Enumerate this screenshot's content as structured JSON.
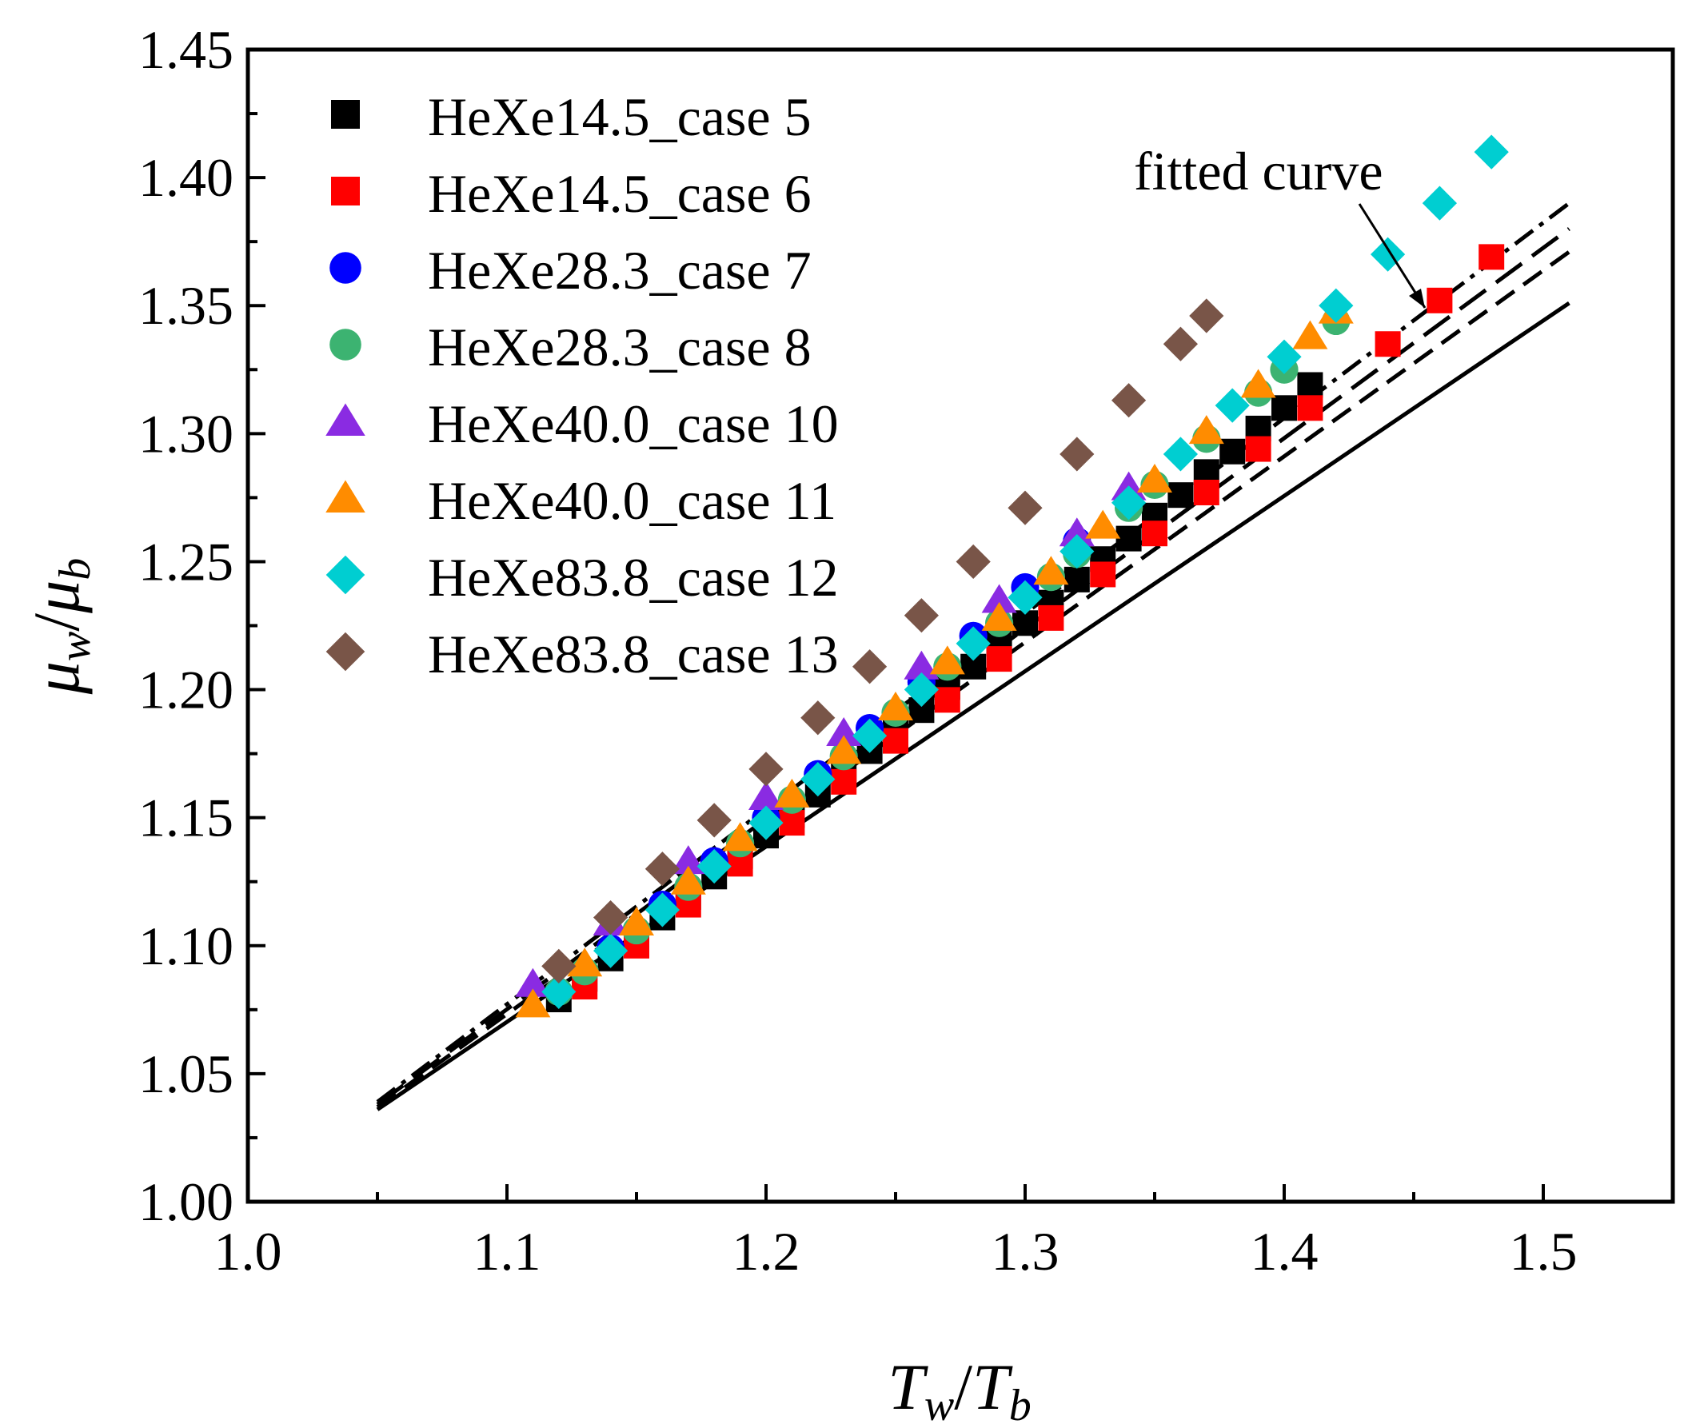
{
  "chart_data": {
    "type": "scatter",
    "xlabel_main": "T",
    "xlabel_sub1": "w",
    "xlabel_sep": "/",
    "xlabel_main2": "T",
    "xlabel_sub2": "b",
    "ylabel_main": "μ",
    "ylabel_sub1": "w",
    "ylabel_sep": "/",
    "ylabel_main2": "μ",
    "ylabel_sub2": "b",
    "xlim": [
      1.0,
      1.55
    ],
    "ylim": [
      1.0,
      1.45
    ],
    "xticks": [
      {
        "v": 1.0,
        "label": "1.0"
      },
      {
        "v": 1.1,
        "label": "1.1"
      },
      {
        "v": 1.2,
        "label": "1.2"
      },
      {
        "v": 1.3,
        "label": "1.3"
      },
      {
        "v": 1.4,
        "label": "1.4"
      },
      {
        "v": 1.5,
        "label": "1.5"
      }
    ],
    "yticks": [
      {
        "v": 1.0,
        "label": "1.00"
      },
      {
        "v": 1.05,
        "label": "1.05"
      },
      {
        "v": 1.1,
        "label": "1.10"
      },
      {
        "v": 1.15,
        "label": "1.15"
      },
      {
        "v": 1.2,
        "label": "1.20"
      },
      {
        "v": 1.25,
        "label": "1.25"
      },
      {
        "v": 1.3,
        "label": "1.30"
      },
      {
        "v": 1.35,
        "label": "1.35"
      },
      {
        "v": 1.4,
        "label": "1.40"
      },
      {
        "v": 1.45,
        "label": "1.45"
      }
    ],
    "annotation": {
      "text": "fitted curve",
      "arrow_to": [
        1.455,
        1.352
      ]
    },
    "series": [
      {
        "name": "HeXe14.5_case 5",
        "marker": "square",
        "color": "#000000",
        "x": [
          1.12,
          1.13,
          1.14,
          1.15,
          1.16,
          1.17,
          1.18,
          1.19,
          1.2,
          1.21,
          1.22,
          1.23,
          1.24,
          1.25,
          1.26,
          1.27,
          1.28,
          1.29,
          1.3,
          1.31,
          1.32,
          1.33,
          1.34,
          1.35,
          1.36,
          1.37,
          1.38,
          1.39,
          1.4,
          1.41
        ],
        "y": [
          1.079,
          1.087,
          1.095,
          1.103,
          1.111,
          1.119,
          1.127,
          1.135,
          1.143,
          1.151,
          1.159,
          1.168,
          1.176,
          1.184,
          1.192,
          1.201,
          1.209,
          1.218,
          1.226,
          1.234,
          1.243,
          1.251,
          1.259,
          1.268,
          1.276,
          1.285,
          1.293,
          1.302,
          1.31,
          1.319
        ]
      },
      {
        "name": "HeXe14.5_case 6",
        "marker": "square",
        "color": "#ff0000",
        "x": [
          1.13,
          1.15,
          1.17,
          1.19,
          1.21,
          1.23,
          1.25,
          1.27,
          1.29,
          1.31,
          1.33,
          1.35,
          1.37,
          1.39,
          1.41,
          1.44,
          1.46,
          1.48
        ],
        "y": [
          1.084,
          1.1,
          1.116,
          1.132,
          1.148,
          1.164,
          1.18,
          1.196,
          1.212,
          1.228,
          1.245,
          1.261,
          1.277,
          1.294,
          1.31,
          1.335,
          1.352,
          1.369
        ]
      },
      {
        "name": "HeXe28.3_case 7",
        "marker": "circle",
        "color": "#0000ff",
        "x": [
          1.14,
          1.16,
          1.18,
          1.2,
          1.22,
          1.24,
          1.26,
          1.28,
          1.3,
          1.32
        ],
        "y": [
          1.099,
          1.116,
          1.133,
          1.15,
          1.167,
          1.185,
          1.203,
          1.221,
          1.24,
          1.258
        ]
      },
      {
        "name": "HeXe28.3_case 8",
        "marker": "circle",
        "color": "#3cb371",
        "x": [
          1.12,
          1.13,
          1.15,
          1.17,
          1.19,
          1.21,
          1.23,
          1.25,
          1.27,
          1.29,
          1.31,
          1.32,
          1.34,
          1.35,
          1.37,
          1.39,
          1.4,
          1.42
        ],
        "y": [
          1.082,
          1.09,
          1.106,
          1.123,
          1.14,
          1.157,
          1.174,
          1.191,
          1.209,
          1.226,
          1.244,
          1.253,
          1.271,
          1.28,
          1.298,
          1.316,
          1.325,
          1.344
        ]
      },
      {
        "name": "HeXe40.0_case 10",
        "marker": "triangle",
        "color": "#8a2be2",
        "x": [
          1.11,
          1.14,
          1.17,
          1.2,
          1.23,
          1.26,
          1.29,
          1.32,
          1.34
        ],
        "y": [
          1.085,
          1.109,
          1.133,
          1.158,
          1.183,
          1.209,
          1.235,
          1.261,
          1.279
        ]
      },
      {
        "name": "HeXe40.0_case 11",
        "marker": "triangle",
        "color": "#ff8c00",
        "x": [
          1.11,
          1.13,
          1.15,
          1.17,
          1.19,
          1.21,
          1.23,
          1.25,
          1.27,
          1.29,
          1.31,
          1.33,
          1.35,
          1.37,
          1.39,
          1.41,
          1.42
        ],
        "y": [
          1.077,
          1.093,
          1.109,
          1.125,
          1.142,
          1.159,
          1.176,
          1.193,
          1.211,
          1.228,
          1.246,
          1.264,
          1.282,
          1.301,
          1.319,
          1.338,
          1.348
        ]
      },
      {
        "name": "HeXe83.8_case 12",
        "marker": "diamond",
        "color": "#00ced1",
        "x": [
          1.12,
          1.14,
          1.16,
          1.18,
          1.2,
          1.22,
          1.24,
          1.26,
          1.28,
          1.3,
          1.32,
          1.34,
          1.36,
          1.38,
          1.4,
          1.42,
          1.44,
          1.46,
          1.48
        ],
        "y": [
          1.082,
          1.098,
          1.114,
          1.131,
          1.148,
          1.165,
          1.182,
          1.2,
          1.218,
          1.236,
          1.254,
          1.273,
          1.292,
          1.311,
          1.33,
          1.35,
          1.37,
          1.39,
          1.41
        ]
      },
      {
        "name": "HeXe83.8_case 13",
        "marker": "diamond",
        "color": "#795548",
        "x": [
          1.12,
          1.14,
          1.16,
          1.18,
          1.2,
          1.22,
          1.24,
          1.26,
          1.28,
          1.3,
          1.32,
          1.34,
          1.36,
          1.37
        ],
        "y": [
          1.092,
          1.111,
          1.13,
          1.149,
          1.169,
          1.189,
          1.209,
          1.229,
          1.25,
          1.271,
          1.292,
          1.313,
          1.335,
          1.346
        ]
      }
    ],
    "fit_lines": [
      {
        "name": "fit-solid",
        "style": "solid",
        "x": [
          1.05,
          1.51
        ],
        "y": [
          1.036,
          1.351
        ]
      },
      {
        "name": "fit-dash",
        "style": "dash",
        "x": [
          1.05,
          1.51
        ],
        "y": [
          1.037,
          1.371
        ]
      },
      {
        "name": "fit-dash-long",
        "style": "dashlong",
        "x": [
          1.05,
          1.51
        ],
        "y": [
          1.038,
          1.38
        ]
      },
      {
        "name": "fit-dashdot",
        "style": "dashdot",
        "x": [
          1.05,
          1.51
        ],
        "y": [
          1.039,
          1.39
        ]
      }
    ]
  }
}
